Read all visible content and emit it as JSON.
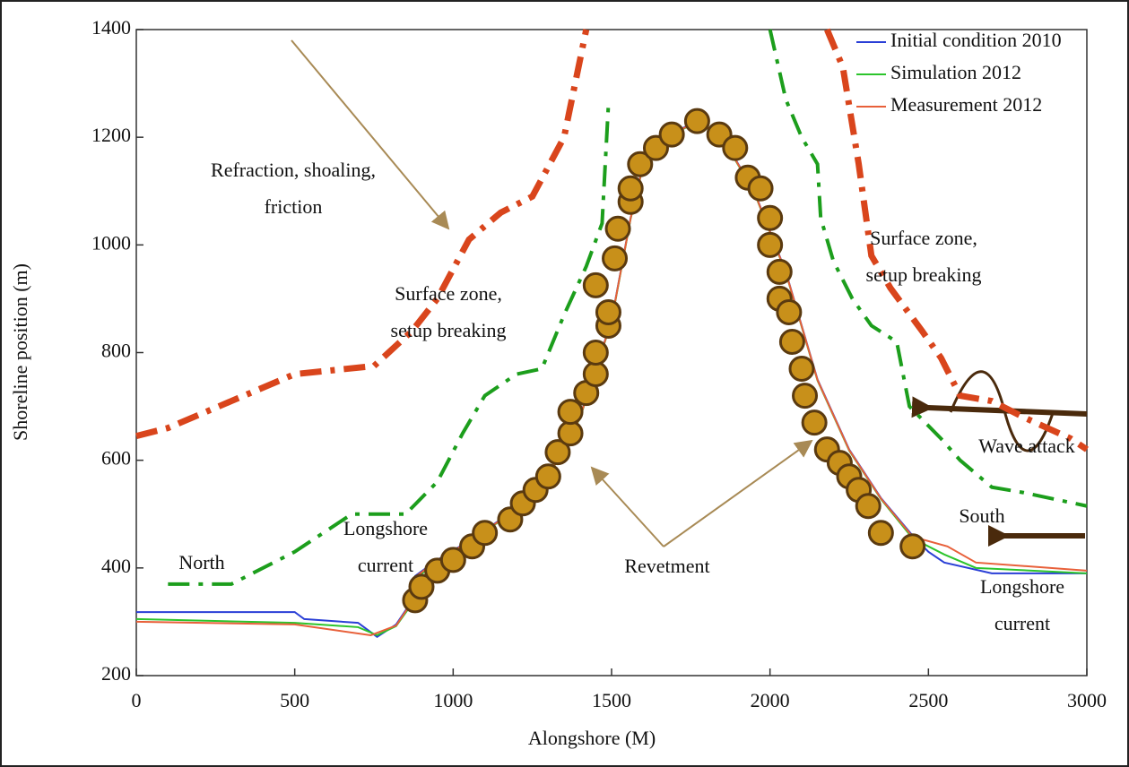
{
  "chart_data": {
    "type": "line",
    "xlabel": "Alongshore (M)",
    "ylabel": "Shoreline position (m)",
    "xlim": [
      0,
      3000
    ],
    "ylim": [
      200,
      1400
    ],
    "xticks": [
      0,
      500,
      1000,
      1500,
      2000,
      2500,
      3000
    ],
    "yticks": [
      200,
      400,
      600,
      800,
      1000,
      1200,
      1400
    ],
    "legend": "upper right",
    "series": [
      {
        "name": "Initial condition 2010",
        "color": "#2a3fd6",
        "x": [
          0,
          160,
          500,
          530,
          700,
          760,
          820,
          860,
          880,
          950,
          1050,
          1200,
          1300,
          1400,
          1500,
          1560,
          1600,
          1700,
          1770,
          1850,
          1950,
          2050,
          2150,
          2250,
          2350,
          2450,
          2500,
          2550,
          2700,
          3000
        ],
        "values": [
          318,
          318,
          318,
          305,
          298,
          272,
          295,
          330,
          385,
          415,
          450,
          510,
          570,
          680,
          860,
          1050,
          1150,
          1210,
          1230,
          1200,
          1100,
          950,
          750,
          620,
          530,
          460,
          430,
          410,
          390,
          390
        ]
      },
      {
        "name": "Simulation 2012",
        "color": "#2cc42c",
        "x": [
          0,
          500,
          700,
          760,
          820,
          860,
          880,
          950,
          1050,
          1200,
          1300,
          1400,
          1500,
          1560,
          1600,
          1700,
          1770,
          1850,
          1950,
          2050,
          2150,
          2250,
          2350,
          2450,
          2550,
          2650,
          3000
        ],
        "values": [
          305,
          298,
          290,
          275,
          292,
          325,
          380,
          412,
          448,
          508,
          568,
          678,
          858,
          1048,
          1148,
          1208,
          1228,
          1198,
          1098,
          948,
          748,
          618,
          528,
          455,
          425,
          400,
          390
        ]
      },
      {
        "name": "Measurement 2012",
        "color": "#e8603a",
        "x": [
          0,
          500,
          740,
          820,
          860,
          880,
          950,
          1050,
          1200,
          1300,
          1400,
          1500,
          1560,
          1600,
          1700,
          1770,
          1850,
          1950,
          2050,
          2150,
          2250,
          2350,
          2450,
          2560,
          2650,
          3000
        ],
        "values": [
          300,
          295,
          275,
          293,
          328,
          383,
          414,
          449,
          509,
          569,
          679,
          859,
          1049,
          1149,
          1209,
          1229,
          1199,
          1099,
          949,
          749,
          619,
          529,
          458,
          440,
          410,
          395
        ]
      },
      {
        "color": "#d9451c",
        "style": "dashdot",
        "x": [
          0,
          100,
          300,
          500,
          750,
          870,
          950,
          1050,
          1150,
          1250,
          1350,
          1420,
          null,
          2180,
          2230,
          2280,
          2320,
          2380,
          2480,
          2540,
          2600,
          2700,
          2800,
          2950,
          3000
        ],
        "values": [
          645,
          660,
          710,
          760,
          775,
          840,
          900,
          1010,
          1060,
          1090,
          1200,
          1400,
          null,
          1400,
          1330,
          1150,
          980,
          920,
          840,
          790,
          720,
          710,
          680,
          640,
          620
        ]
      },
      {
        "color": "#1c9e1c",
        "style": "dashdot",
        "x": [
          100,
          300,
          500,
          680,
          850,
          950,
          1030,
          1100,
          1200,
          1280,
          1350,
          1420,
          1470,
          1490,
          null,
          2000,
          2050,
          2100,
          2150,
          2160,
          2200,
          2260,
          2320,
          2400,
          2440,
          2540,
          2600,
          2700,
          2800,
          3000
        ],
        "values": [
          370,
          370,
          430,
          500,
          500,
          560,
          650,
          720,
          760,
          770,
          870,
          960,
          1040,
          1260,
          null,
          1400,
          1270,
          1200,
          1150,
          1050,
          970,
          900,
          850,
          820,
          700,
          640,
          600,
          550,
          540,
          515
        ]
      },
      {
        "color": "#c8901a",
        "style": "markers",
        "x": [
          880,
          900,
          950,
          1000,
          1060,
          1100,
          1180,
          1220,
          1260,
          1300,
          1330,
          1370,
          1370,
          1420,
          1450,
          1450,
          1490,
          1490,
          1450,
          1510,
          1520,
          1560,
          1560,
          1590,
          1640,
          1690,
          1770,
          1840,
          1890,
          1930,
          1970,
          2000,
          2000,
          2030,
          2030,
          2060,
          2070,
          2100,
          2110,
          2140,
          2180,
          2220,
          2250,
          2280,
          2310,
          2350,
          2450
        ],
        "values": [
          340,
          365,
          395,
          415,
          440,
          465,
          490,
          520,
          545,
          570,
          615,
          650,
          690,
          725,
          760,
          800,
          850,
          875,
          925,
          975,
          1030,
          1080,
          1105,
          1150,
          1180,
          1205,
          1230,
          1205,
          1180,
          1125,
          1105,
          1050,
          1000,
          950,
          900,
          875,
          820,
          770,
          720,
          670,
          620,
          595,
          570,
          545,
          515,
          465,
          440
        ]
      }
    ],
    "annotations": [
      {
        "lines": [
          "Refraction, shoaling,",
          "friction"
        ]
      },
      {
        "lines": [
          "Surface zone,",
          "setup breaking"
        ]
      },
      {
        "lines": [
          "Surface zone,",
          "setup breaking"
        ]
      },
      {
        "lines": [
          "North"
        ]
      },
      {
        "lines": [
          "Longshore",
          "current"
        ]
      },
      {
        "lines": [
          "Revetment"
        ]
      },
      {
        "lines": [
          "Wave attack"
        ]
      },
      {
        "lines": [
          "South"
        ]
      },
      {
        "lines": [
          "Longshore",
          "current"
        ]
      }
    ]
  }
}
